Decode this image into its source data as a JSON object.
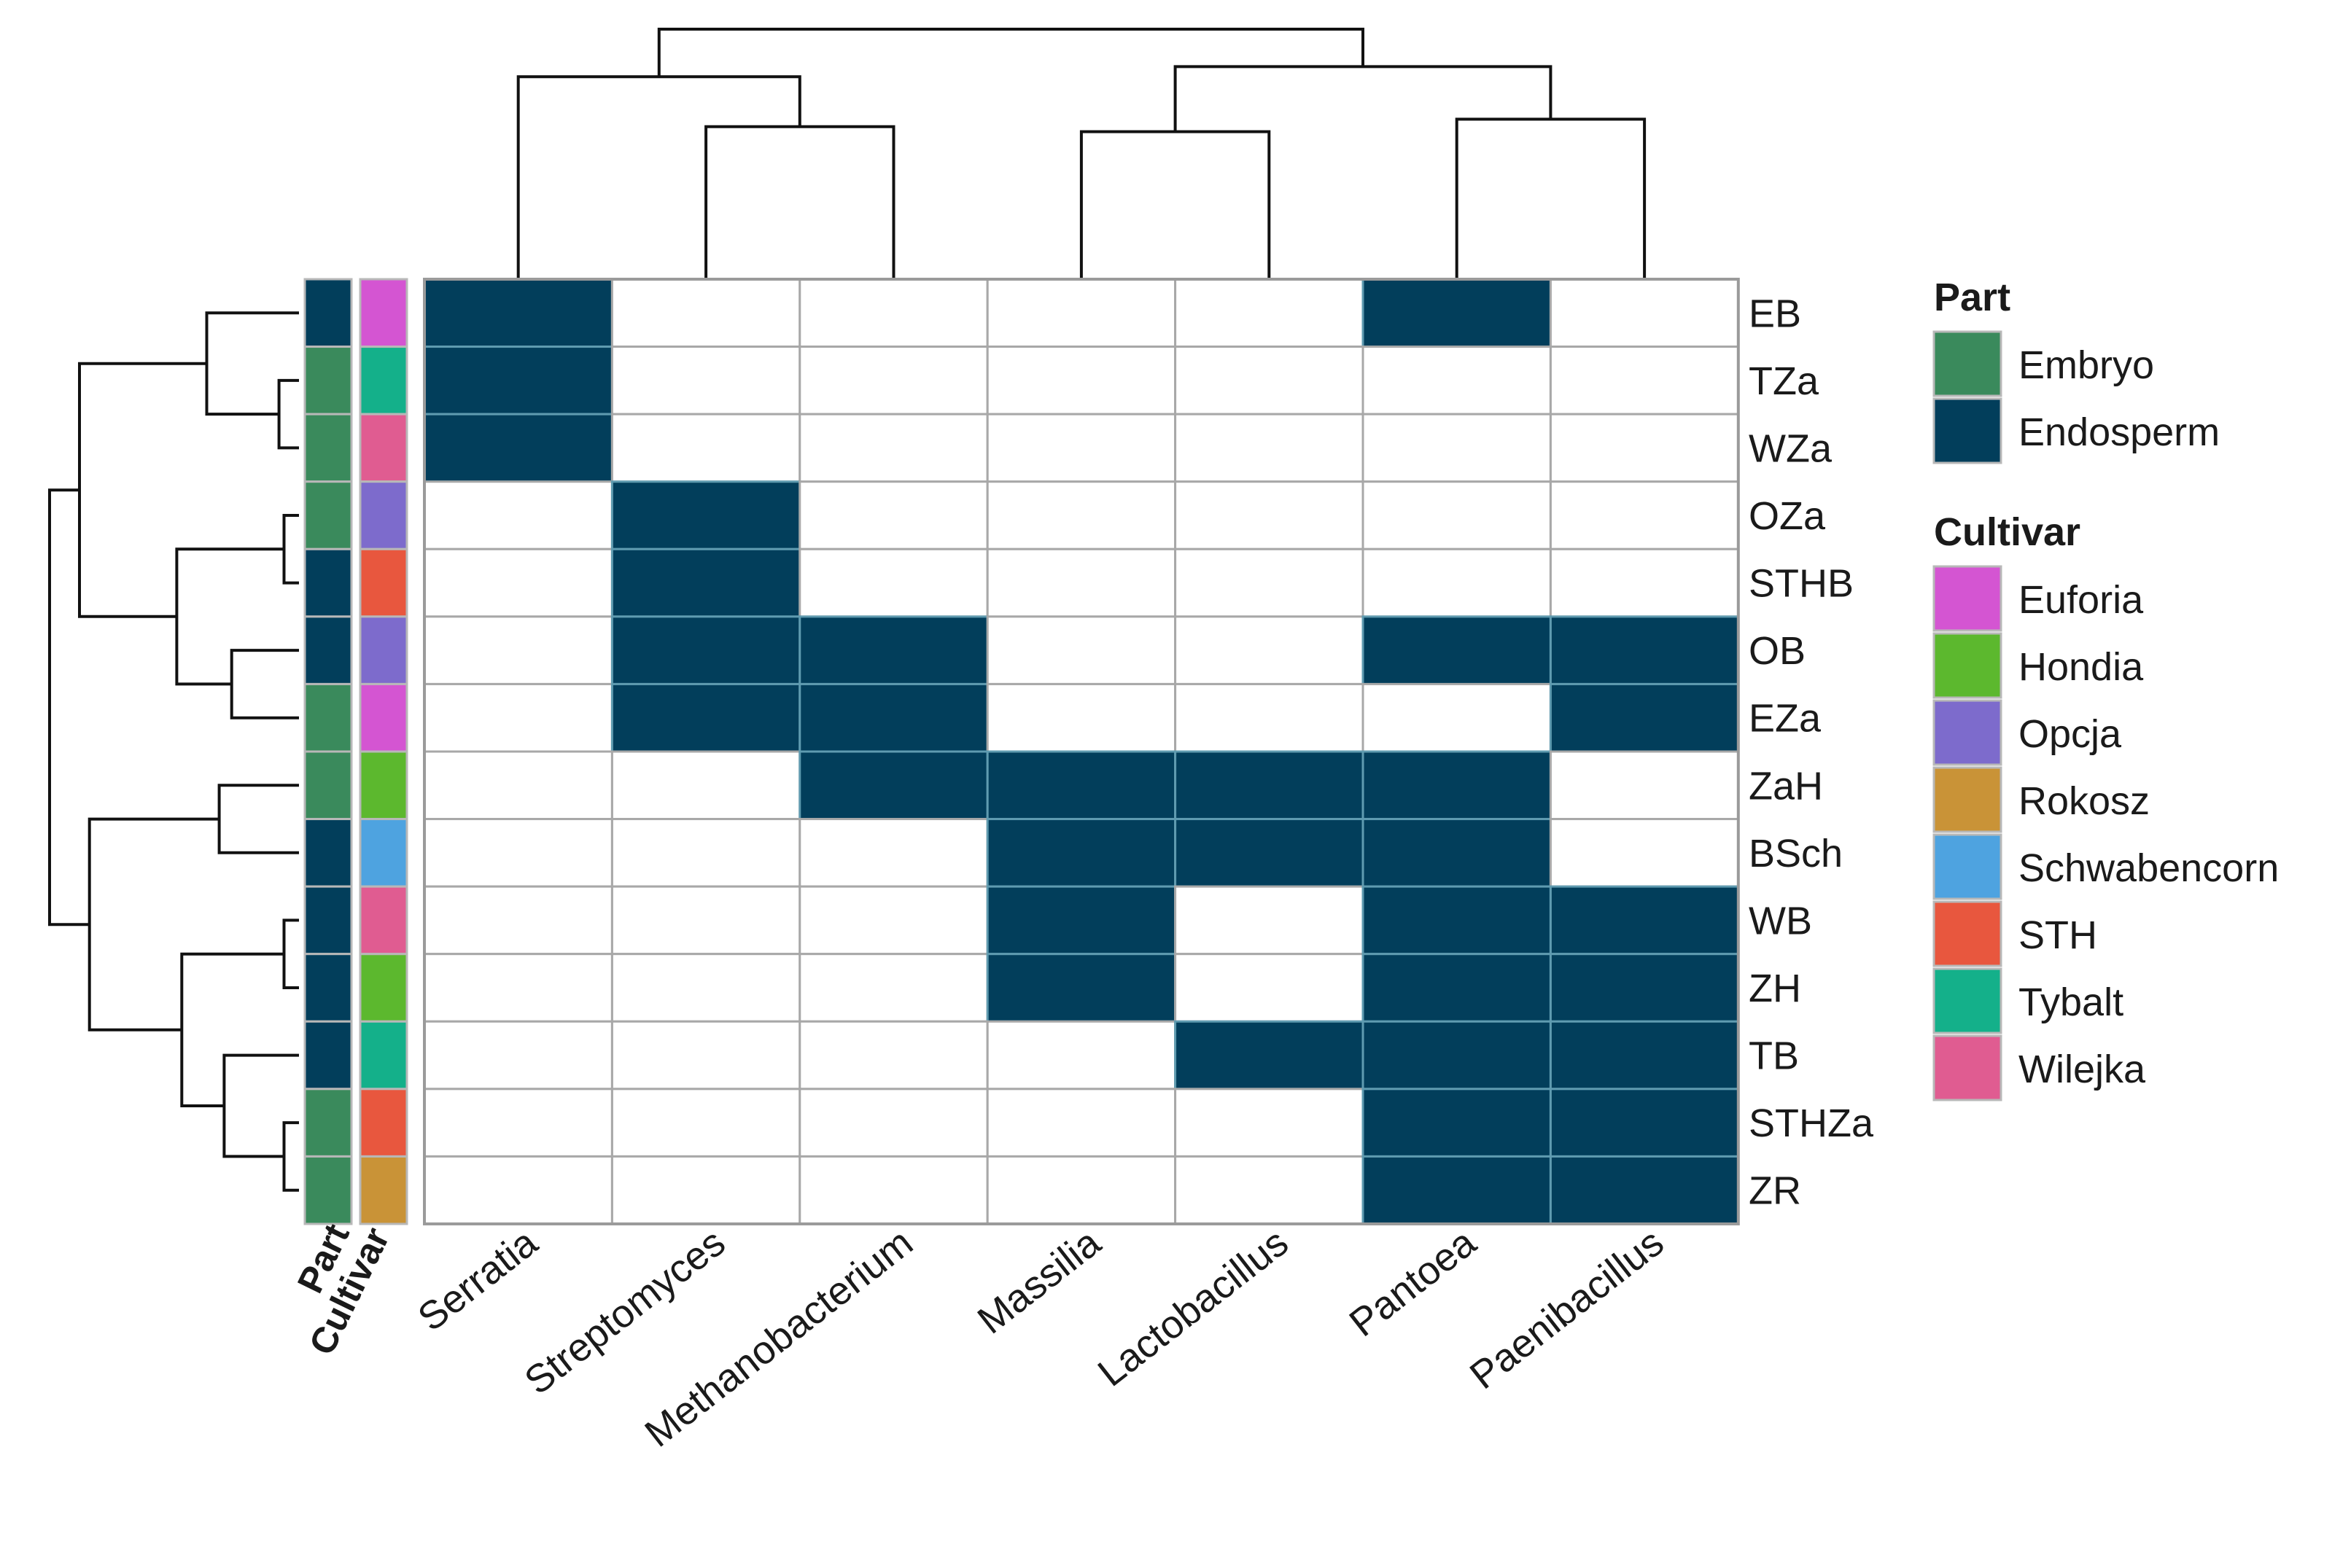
{
  "chart_data": {
    "type": "heatmap",
    "title": "",
    "rows": [
      "EB",
      "TZa",
      "WZa",
      "OZa",
      "STHB",
      "OB",
      "EZa",
      "ZaH",
      "BSch",
      "WB",
      "ZH",
      "TB",
      "STHZa",
      "ZR"
    ],
    "columns": [
      "Serratia",
      "Streptomyces",
      "Methanobacterium",
      "Massilia",
      "Lactobacillus",
      "Pantoea",
      "Paenibacillus"
    ],
    "values": [
      [
        1,
        0,
        0,
        0,
        0,
        1,
        0
      ],
      [
        1,
        0,
        0,
        0,
        0,
        0,
        0
      ],
      [
        1,
        0,
        0,
        0,
        0,
        0,
        0
      ],
      [
        0,
        1,
        0,
        0,
        0,
        0,
        0
      ],
      [
        0,
        1,
        0,
        0,
        0,
        0,
        0
      ],
      [
        0,
        1,
        1,
        0,
        0,
        1,
        1
      ],
      [
        0,
        1,
        1,
        0,
        0,
        0,
        1
      ],
      [
        0,
        0,
        1,
        1,
        1,
        1,
        0
      ],
      [
        0,
        0,
        0,
        1,
        1,
        1,
        0
      ],
      [
        0,
        0,
        0,
        1,
        0,
        1,
        1
      ],
      [
        0,
        0,
        0,
        1,
        0,
        1,
        1
      ],
      [
        0,
        0,
        0,
        0,
        1,
        1,
        1
      ],
      [
        0,
        0,
        0,
        0,
        0,
        1,
        1
      ],
      [
        0,
        0,
        0,
        0,
        0,
        1,
        1
      ]
    ],
    "colors": {
      "present": "#023e5b",
      "absent": "#ffffff",
      "grid": "#a8a8a8"
    },
    "annotations": {
      "part_label": "Part",
      "cultivar_label": "Cultivar",
      "part": [
        "Endosperm",
        "Embryo",
        "Embryo",
        "Embryo",
        "Endosperm",
        "Endosperm",
        "Embryo",
        "Embryo",
        "Endosperm",
        "Endosperm",
        "Endosperm",
        "Endosperm",
        "Embryo",
        "Embryo"
      ],
      "cultivar": [
        "Euforia",
        "Tybalt",
        "Wilejka",
        "Opcja",
        "STH",
        "Opcja",
        "Euforia",
        "Hondia",
        "Schwabencorn",
        "Wilejka",
        "Hondia",
        "Tybalt",
        "STH",
        "Rokosz"
      ]
    },
    "legend": {
      "position": "right",
      "part": {
        "title": "Part",
        "items": [
          {
            "label": "Embryo",
            "color": "#3a8a5c"
          },
          {
            "label": "Endosperm",
            "color": "#023e5b"
          }
        ]
      },
      "cultivar": {
        "title": "Cultivar",
        "items": [
          {
            "label": "Euforia",
            "color": "#d455d2"
          },
          {
            "label": "Hondia",
            "color": "#5cb82e"
          },
          {
            "label": "Opcja",
            "color": "#7d6bcc"
          },
          {
            "label": "Rokosz",
            "color": "#c99337"
          },
          {
            "label": "Schwabencorn",
            "color": "#4ea3e0"
          },
          {
            "label": "STH",
            "color": "#e8573e"
          },
          {
            "label": "Tybalt",
            "color": "#14b08a"
          },
          {
            "label": "Wilejka",
            "color": "#e05c91"
          }
        ]
      }
    }
  }
}
